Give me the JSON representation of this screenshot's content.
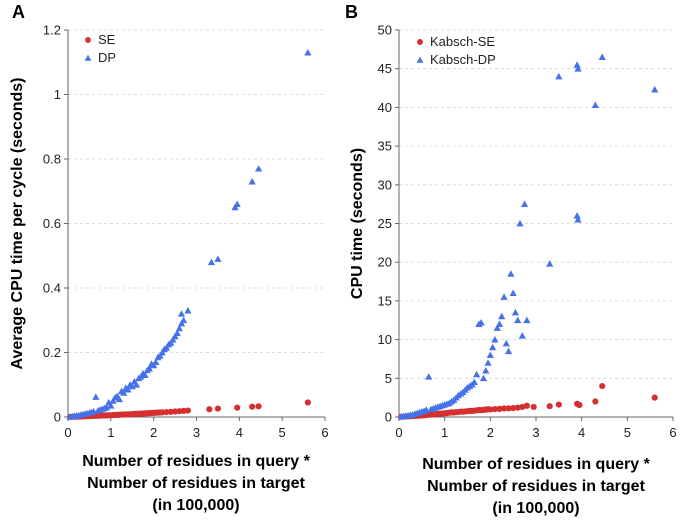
{
  "colors": {
    "se": "#d62f2f",
    "dp": "#4572e8"
  },
  "chart_data": [
    {
      "type": "scatter",
      "panel_label": "A",
      "title": "",
      "xlabel": [
        "Number of residues in query *",
        "Number of residues in target",
        "(in 100,000)"
      ],
      "ylabel": "Average CPU time per cycle (seconds)",
      "xlim": [
        0,
        6
      ],
      "ylim": [
        0,
        1.2
      ],
      "xticks": [
        0,
        1,
        2,
        3,
        4,
        5,
        6
      ],
      "xtick_labels": [
        "0",
        "1",
        "2",
        "3",
        "4",
        "5",
        "6"
      ],
      "yticks": [
        0,
        0.2,
        0.4,
        0.6,
        0.8,
        1,
        1.2
      ],
      "ytick_labels": [
        "0",
        "0.2",
        "0.4",
        "0.6",
        "0.8",
        "1",
        "1.2"
      ],
      "grid": "horizontal",
      "legend_position": "top-left",
      "series": [
        {
          "name": "SE",
          "marker": "circle",
          "color": "#d62f2f",
          "points": [
            [
              0.05,
              0.0002
            ],
            [
              0.1,
              0.0005
            ],
            [
              0.15,
              0.0008
            ],
            [
              0.2,
              0.001
            ],
            [
              0.25,
              0.0013
            ],
            [
              0.3,
              0.0016
            ],
            [
              0.35,
              0.0019
            ],
            [
              0.4,
              0.0022
            ],
            [
              0.45,
              0.0025
            ],
            [
              0.5,
              0.0028
            ],
            [
              0.55,
              0.003
            ],
            [
              0.6,
              0.0033
            ],
            [
              0.65,
              0.0036
            ],
            [
              0.7,
              0.0039
            ],
            [
              0.75,
              0.0042
            ],
            [
              0.8,
              0.0045
            ],
            [
              0.85,
              0.0048
            ],
            [
              0.9,
              0.005
            ],
            [
              0.95,
              0.0053
            ],
            [
              1.0,
              0.0056
            ],
            [
              1.05,
              0.006
            ],
            [
              1.1,
              0.0063
            ],
            [
              1.15,
              0.0066
            ],
            [
              1.2,
              0.007
            ],
            [
              1.25,
              0.0073
            ],
            [
              1.3,
              0.0076
            ],
            [
              1.35,
              0.008
            ],
            [
              1.4,
              0.0083
            ],
            [
              1.45,
              0.0086
            ],
            [
              1.5,
              0.009
            ],
            [
              1.55,
              0.0093
            ],
            [
              1.6,
              0.0096
            ],
            [
              1.65,
              0.01
            ],
            [
              1.7,
              0.0104
            ],
            [
              1.75,
              0.0108
            ],
            [
              1.8,
              0.0112
            ],
            [
              1.85,
              0.0116
            ],
            [
              1.9,
              0.012
            ],
            [
              1.95,
              0.0124
            ],
            [
              2.0,
              0.0128
            ],
            [
              2.05,
              0.0132
            ],
            [
              2.1,
              0.0136
            ],
            [
              2.15,
              0.014
            ],
            [
              2.2,
              0.0144
            ],
            [
              2.3,
              0.0152
            ],
            [
              2.4,
              0.016
            ],
            [
              2.5,
              0.017
            ],
            [
              2.6,
              0.018
            ],
            [
              2.7,
              0.019
            ],
            [
              2.8,
              0.02
            ],
            [
              3.3,
              0.024
            ],
            [
              3.5,
              0.026
            ],
            [
              3.95,
              0.029
            ],
            [
              4.3,
              0.032
            ],
            [
              4.45,
              0.033
            ],
            [
              5.6,
              0.045
            ]
          ]
        },
        {
          "name": "DP",
          "marker": "triangle",
          "color": "#4572e8",
          "points": [
            [
              0.05,
              0.001
            ],
            [
              0.1,
              0.002
            ],
            [
              0.15,
              0.003
            ],
            [
              0.2,
              0.004
            ],
            [
              0.25,
              0.005
            ],
            [
              0.3,
              0.007
            ],
            [
              0.35,
              0.008
            ],
            [
              0.4,
              0.01
            ],
            [
              0.45,
              0.011
            ],
            [
              0.5,
              0.013
            ],
            [
              0.55,
              0.015
            ],
            [
              0.6,
              0.017
            ],
            [
              0.65,
              0.062
            ],
            [
              0.7,
              0.02
            ],
            [
              0.75,
              0.022
            ],
            [
              0.8,
              0.025
            ],
            [
              0.85,
              0.027
            ],
            [
              0.9,
              0.03
            ],
            [
              0.95,
              0.045
            ],
            [
              1.0,
              0.035
            ],
            [
              1.05,
              0.05
            ],
            [
              1.1,
              0.06
            ],
            [
              1.15,
              0.065
            ],
            [
              1.2,
              0.055
            ],
            [
              1.25,
              0.08
            ],
            [
              1.3,
              0.075
            ],
            [
              1.35,
              0.09
            ],
            [
              1.4,
              0.085
            ],
            [
              1.45,
              0.1
            ],
            [
              1.5,
              0.095
            ],
            [
              1.55,
              0.11
            ],
            [
              1.6,
              0.1
            ],
            [
              1.65,
              0.12
            ],
            [
              1.7,
              0.125
            ],
            [
              1.75,
              0.135
            ],
            [
              1.8,
              0.13
            ],
            [
              1.85,
              0.145
            ],
            [
              1.9,
              0.15
            ],
            [
              1.95,
              0.165
            ],
            [
              2.0,
              0.16
            ],
            [
              2.05,
              0.17
            ],
            [
              2.1,
              0.185
            ],
            [
              2.15,
              0.19
            ],
            [
              2.2,
              0.2
            ],
            [
              2.25,
              0.21
            ],
            [
              2.3,
              0.215
            ],
            [
              2.35,
              0.225
            ],
            [
              2.4,
              0.23
            ],
            [
              2.45,
              0.24
            ],
            [
              2.5,
              0.25
            ],
            [
              2.55,
              0.26
            ],
            [
              2.6,
              0.275
            ],
            [
              2.65,
              0.29
            ],
            [
              2.7,
              0.3
            ],
            [
              2.65,
              0.32
            ],
            [
              2.8,
              0.33
            ],
            [
              3.35,
              0.48
            ],
            [
              3.5,
              0.49
            ],
            [
              3.9,
              0.65
            ],
            [
              3.95,
              0.66
            ],
            [
              4.3,
              0.73
            ],
            [
              4.45,
              0.77
            ],
            [
              5.6,
              1.13
            ]
          ]
        }
      ]
    },
    {
      "type": "scatter",
      "panel_label": "B",
      "title": "",
      "xlabel": [
        "Number of residues in query *",
        "Number of residues in target",
        "(in 100,000)"
      ],
      "ylabel": "CPU time (seconds)",
      "xlim": [
        0,
        6
      ],
      "ylim": [
        0,
        50
      ],
      "xticks": [
        0,
        1,
        2,
        3,
        4,
        5,
        6
      ],
      "xtick_labels": [
        "0",
        "1",
        "2",
        "3",
        "4",
        "5",
        "6"
      ],
      "yticks": [
        0,
        5,
        10,
        15,
        20,
        25,
        30,
        35,
        40,
        45,
        50
      ],
      "ytick_labels": [
        "0",
        "5",
        "10",
        "15",
        "20",
        "25",
        "30",
        "35",
        "40",
        "45",
        "50"
      ],
      "grid": "horizontal",
      "legend_position": "top-left",
      "series": [
        {
          "name": "Kabsch-SE",
          "marker": "circle",
          "color": "#d62f2f",
          "points": [
            [
              0.05,
              0.02
            ],
            [
              0.1,
              0.04
            ],
            [
              0.15,
              0.06
            ],
            [
              0.2,
              0.08
            ],
            [
              0.25,
              0.1
            ],
            [
              0.3,
              0.12
            ],
            [
              0.35,
              0.14
            ],
            [
              0.4,
              0.16
            ],
            [
              0.45,
              0.18
            ],
            [
              0.5,
              0.2
            ],
            [
              0.55,
              0.22
            ],
            [
              0.6,
              0.25
            ],
            [
              0.65,
              0.28
            ],
            [
              0.7,
              0.3
            ],
            [
              0.75,
              0.33
            ],
            [
              0.8,
              0.36
            ],
            [
              0.85,
              0.4
            ],
            [
              0.9,
              0.42
            ],
            [
              0.95,
              0.45
            ],
            [
              1.0,
              0.48
            ],
            [
              1.05,
              0.5
            ],
            [
              1.1,
              0.55
            ],
            [
              1.15,
              0.6
            ],
            [
              1.2,
              0.58
            ],
            [
              1.25,
              0.62
            ],
            [
              1.3,
              0.65
            ],
            [
              1.35,
              0.7
            ],
            [
              1.4,
              0.68
            ],
            [
              1.45,
              0.72
            ],
            [
              1.5,
              0.75
            ],
            [
              1.55,
              0.8
            ],
            [
              1.6,
              0.78
            ],
            [
              1.65,
              0.82
            ],
            [
              1.7,
              0.85
            ],
            [
              1.75,
              0.9
            ],
            [
              1.8,
              0.88
            ],
            [
              1.85,
              0.92
            ],
            [
              1.9,
              0.95
            ],
            [
              1.95,
              1.0
            ],
            [
              2.0,
              0.98
            ],
            [
              2.1,
              1.02
            ],
            [
              2.2,
              1.05
            ],
            [
              2.3,
              1.1
            ],
            [
              2.4,
              1.12
            ],
            [
              2.5,
              1.15
            ],
            [
              2.6,
              1.2
            ],
            [
              2.7,
              1.3
            ],
            [
              2.8,
              1.45
            ],
            [
              2.95,
              1.3
            ],
            [
              3.3,
              1.4
            ],
            [
              3.5,
              1.6
            ],
            [
              3.9,
              1.7
            ],
            [
              3.95,
              1.55
            ],
            [
              4.3,
              2.0
            ],
            [
              4.45,
              4.0
            ],
            [
              5.6,
              2.5
            ]
          ]
        },
        {
          "name": "Kabsch-DP",
          "marker": "triangle",
          "color": "#4572e8",
          "points": [
            [
              0.05,
              0.05
            ],
            [
              0.1,
              0.1
            ],
            [
              0.15,
              0.15
            ],
            [
              0.2,
              0.2
            ],
            [
              0.25,
              0.25
            ],
            [
              0.3,
              0.3
            ],
            [
              0.35,
              0.4
            ],
            [
              0.4,
              0.5
            ],
            [
              0.45,
              0.6
            ],
            [
              0.5,
              0.7
            ],
            [
              0.55,
              0.8
            ],
            [
              0.6,
              0.9
            ],
            [
              0.65,
              5.2
            ],
            [
              0.7,
              1.0
            ],
            [
              0.75,
              1.1
            ],
            [
              0.8,
              1.2
            ],
            [
              0.85,
              1.3
            ],
            [
              0.9,
              1.4
            ],
            [
              0.95,
              1.5
            ],
            [
              1.0,
              1.6
            ],
            [
              1.05,
              1.7
            ],
            [
              1.1,
              1.8
            ],
            [
              1.15,
              2.0
            ],
            [
              1.2,
              2.2
            ],
            [
              1.25,
              2.5
            ],
            [
              1.3,
              2.8
            ],
            [
              1.35,
              3.0
            ],
            [
              1.4,
              3.2
            ],
            [
              1.45,
              3.5
            ],
            [
              1.5,
              3.8
            ],
            [
              1.55,
              4.0
            ],
            [
              1.6,
              4.2
            ],
            [
              1.65,
              4.5
            ],
            [
              1.7,
              5.5
            ],
            [
              1.75,
              12.0
            ],
            [
              1.8,
              12.2
            ],
            [
              1.85,
              5.0
            ],
            [
              1.9,
              6.0
            ],
            [
              1.95,
              7.0
            ],
            [
              2.0,
              8.0
            ],
            [
              2.05,
              9.0
            ],
            [
              2.1,
              10.0
            ],
            [
              2.15,
              11.5
            ],
            [
              2.2,
              12.0
            ],
            [
              2.25,
              13.0
            ],
            [
              2.3,
              15.5
            ],
            [
              2.35,
              9.5
            ],
            [
              2.4,
              8.5
            ],
            [
              2.45,
              18.5
            ],
            [
              2.5,
              16.0
            ],
            [
              2.55,
              13.5
            ],
            [
              2.6,
              12.5
            ],
            [
              2.65,
              25.0
            ],
            [
              2.7,
              10.5
            ],
            [
              2.75,
              27.5
            ],
            [
              2.8,
              12.5
            ],
            [
              3.3,
              19.8
            ],
            [
              3.5,
              44.0
            ],
            [
              3.9,
              45.5
            ],
            [
              3.92,
              45.0
            ],
            [
              3.9,
              26.0
            ],
            [
              3.92,
              25.5
            ],
            [
              4.3,
              40.3
            ],
            [
              4.45,
              46.5
            ],
            [
              5.6,
              42.3
            ]
          ]
        }
      ]
    }
  ]
}
